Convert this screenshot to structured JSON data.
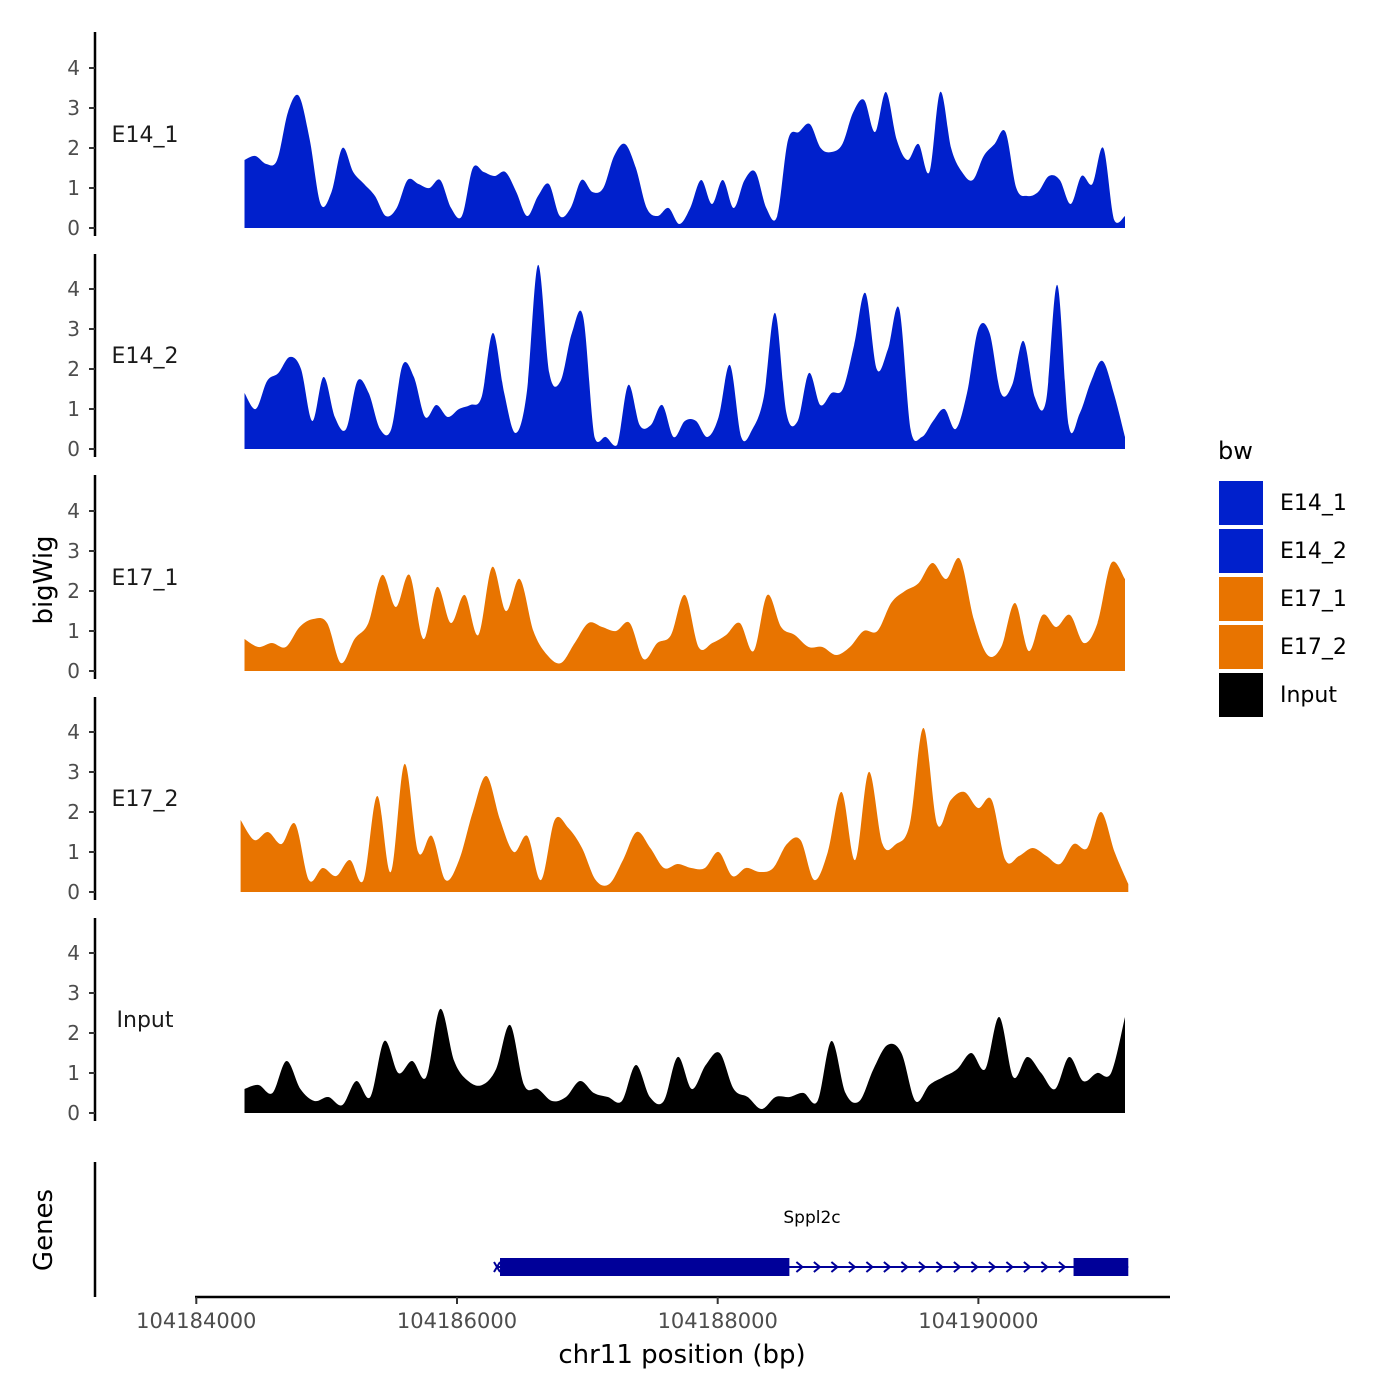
{
  "chart_data": {
    "type": "area",
    "title": "",
    "xlabel": "chr11 position (bp)",
    "ylabel": "bigWig",
    "genes_label": "Genes",
    "xlim": [
      104183990,
      104191470
    ],
    "ylim": [
      0,
      4.9
    ],
    "y_ticks": [
      0,
      1,
      2,
      3,
      4
    ],
    "x_ticks": [
      104184000,
      104186000,
      104188000,
      104190000
    ],
    "x_tick_labels": [
      "104184000",
      "104186000",
      "104188000",
      "104190000"
    ],
    "legend": {
      "title": "bw",
      "position": "right",
      "entries": [
        {
          "label": "E14_1",
          "color": "#0020CC"
        },
        {
          "label": "E14_2",
          "color": "#0020CC"
        },
        {
          "label": "E17_1",
          "color": "#E87400"
        },
        {
          "label": "E17_2",
          "color": "#E87400"
        },
        {
          "label": "Input",
          "color": "#000000"
        }
      ]
    },
    "series": [
      {
        "name": "E14_1",
        "color": "#0020CC",
        "x_start": 104184370,
        "x_end": 104191125,
        "values": [
          1.7,
          1.8,
          1.6,
          1.7,
          2.9,
          3.3,
          2.2,
          0.6,
          0.9,
          2.0,
          1.4,
          1.1,
          0.8,
          0.3,
          0.5,
          1.2,
          1.1,
          1.0,
          1.2,
          0.5,
          0.3,
          1.5,
          1.4,
          1.3,
          1.4,
          0.9,
          0.3,
          0.8,
          1.1,
          0.3,
          0.5,
          1.2,
          0.9,
          1.0,
          1.8,
          2.1,
          1.5,
          0.5,
          0.3,
          0.5,
          0.1,
          0.5,
          1.2,
          0.6,
          1.2,
          0.5,
          1.2,
          1.4,
          0.5,
          0.3,
          2.2,
          2.4,
          2.6,
          2.0,
          1.9,
          2.1,
          2.9,
          3.2,
          2.4,
          3.4,
          2.2,
          1.7,
          2.1,
          1.4,
          3.4,
          2.0,
          1.4,
          1.2,
          1.8,
          2.1,
          2.4,
          1.0,
          0.8,
          0.9,
          1.3,
          1.2,
          0.6,
          1.3,
          1.1,
          2.0,
          0.2,
          0.3
        ]
      },
      {
        "name": "E14_2",
        "color": "#0020CC",
        "x_start": 104184370,
        "x_end": 104191125,
        "values": [
          1.4,
          1.0,
          1.7,
          1.9,
          2.3,
          2.0,
          0.7,
          1.8,
          0.8,
          0.5,
          1.7,
          1.4,
          0.5,
          0.5,
          2.1,
          1.8,
          0.8,
          1.1,
          0.8,
          1.0,
          1.1,
          1.3,
          2.9,
          1.4,
          0.4,
          1.4,
          4.6,
          1.9,
          1.7,
          2.9,
          3.3,
          0.3,
          0.3,
          0.1,
          1.6,
          0.6,
          0.6,
          1.1,
          0.3,
          0.7,
          0.7,
          0.3,
          0.8,
          2.1,
          0.3,
          0.5,
          1.3,
          3.4,
          0.9,
          0.7,
          1.9,
          1.1,
          1.4,
          1.5,
          2.6,
          3.9,
          2.0,
          2.5,
          3.5,
          0.5,
          0.3,
          0.7,
          1.0,
          0.5,
          1.4,
          3.0,
          2.9,
          1.4,
          1.6,
          2.7,
          1.3,
          1.2,
          4.1,
          0.6,
          0.9,
          1.7,
          2.2,
          1.4,
          0.3
        ]
      },
      {
        "name": "E17_1",
        "color": "#E87400",
        "x_start": 104184370,
        "x_end": 104191125,
        "values": [
          0.8,
          0.6,
          0.7,
          0.6,
          1.1,
          1.3,
          1.2,
          0.2,
          0.8,
          1.2,
          2.4,
          1.6,
          2.4,
          0.8,
          2.1,
          1.2,
          1.9,
          0.9,
          2.6,
          1.5,
          2.3,
          1.0,
          0.4,
          0.2,
          0.7,
          1.2,
          1.1,
          1.0,
          1.2,
          0.3,
          0.7,
          0.9,
          1.9,
          0.6,
          0.7,
          0.9,
          1.2,
          0.5,
          1.9,
          1.1,
          0.9,
          0.6,
          0.6,
          0.4,
          0.6,
          1.0,
          1.0,
          1.7,
          2.0,
          2.2,
          2.7,
          2.3,
          2.8,
          1.3,
          0.4,
          0.6,
          1.7,
          0.5,
          1.4,
          1.1,
          1.4,
          0.7,
          1.2,
          2.7,
          2.3
        ]
      },
      {
        "name": "E17_2",
        "color": "#E87400",
        "x_start": 104184340,
        "x_end": 104191150,
        "values": [
          1.8,
          1.3,
          1.5,
          1.2,
          1.7,
          0.3,
          0.6,
          0.4,
          0.8,
          0.3,
          2.4,
          0.5,
          3.2,
          1.0,
          1.4,
          0.3,
          0.8,
          2.0,
          2.9,
          1.8,
          1.0,
          1.4,
          0.3,
          1.8,
          1.6,
          1.1,
          0.3,
          0.2,
          0.8,
          1.5,
          1.1,
          0.6,
          0.7,
          0.6,
          0.6,
          1.0,
          0.4,
          0.6,
          0.5,
          0.6,
          1.2,
          1.3,
          0.3,
          1.0,
          2.5,
          0.8,
          3.0,
          1.2,
          1.2,
          1.7,
          4.1,
          1.7,
          2.3,
          2.5,
          2.1,
          2.3,
          0.8,
          0.9,
          1.1,
          0.9,
          0.7,
          1.2,
          1.1,
          2.0,
          1.0,
          0.2
        ]
      },
      {
        "name": "Input",
        "color": "#000000",
        "x_start": 104184370,
        "x_end": 104191125,
        "values": [
          0.6,
          0.7,
          0.5,
          1.3,
          0.6,
          0.3,
          0.4,
          0.2,
          0.8,
          0.4,
          1.8,
          1.0,
          1.3,
          0.9,
          2.6,
          1.3,
          0.8,
          0.7,
          1.1,
          2.2,
          0.7,
          0.6,
          0.3,
          0.4,
          0.8,
          0.5,
          0.4,
          0.3,
          1.2,
          0.4,
          0.3,
          1.4,
          0.6,
          1.2,
          1.5,
          0.6,
          0.4,
          0.1,
          0.4,
          0.4,
          0.5,
          0.3,
          1.8,
          0.5,
          0.3,
          1.1,
          1.7,
          1.5,
          0.3,
          0.7,
          0.9,
          1.1,
          1.5,
          1.1,
          2.4,
          0.9,
          1.4,
          1.0,
          0.6,
          1.4,
          0.8,
          1.0,
          1.0,
          2.4
        ]
      }
    ],
    "genes": [
      {
        "name": "Sppl2c",
        "color": "#000099",
        "strand": "+",
        "start": 104186330,
        "end": 104191150,
        "cds": [
          104186330,
          104188550
        ],
        "utr_exon": [
          104190730,
          104191150
        ]
      }
    ]
  }
}
